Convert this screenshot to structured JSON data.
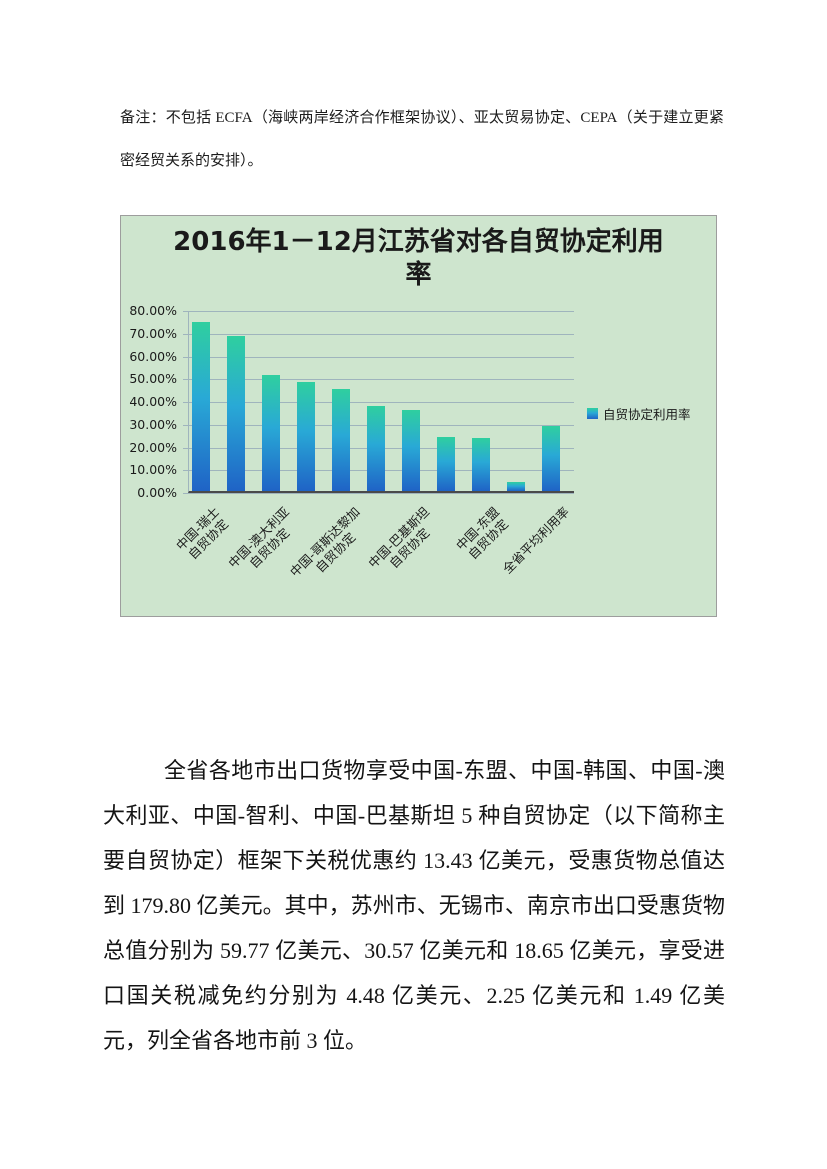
{
  "note": {
    "text": "备注：不包括 ECFA（海峡两岸经济合作框架协议）、亚太贸易协定、CEPA（关于建立更紧密经贸关系的安排）。"
  },
  "chart_data": {
    "type": "bar",
    "title": "2016年1－12月江苏省对各自贸协定利用率",
    "xlabel": "",
    "ylabel": "",
    "unit": "percent",
    "ylim": [
      0,
      80
    ],
    "ytick_step": 10,
    "grid": true,
    "legend": [
      "自贸协定利用率"
    ],
    "legend_position": "right",
    "ytick_labels": [
      "80.00%",
      "70.00%",
      "60.00%",
      "50.00%",
      "40.00%",
      "30.00%",
      "20.00%",
      "10.00%",
      "0.00%"
    ],
    "categories": [
      "中国-瑞士自贸协定",
      "",
      "中国-澳大利亚自贸协定",
      "",
      "中国-哥斯达黎加自贸协定",
      "",
      "中国-巴基斯坦自贸协定",
      "",
      "中国-东盟自贸协定",
      "",
      "全省平均利用率"
    ],
    "values": [
      74.3,
      68.3,
      51.2,
      48.0,
      45.0,
      37.3,
      35.8,
      23.9,
      23.5,
      4.0,
      28.8
    ],
    "x_labels": [
      {
        "bar": 0,
        "text": "中国-瑞士\n自贸协定"
      },
      {
        "bar": 2,
        "text": "中国-澳大利亚\n自贸协定"
      },
      {
        "bar": 4,
        "text": "中国-哥斯达黎加\n自贸协定"
      },
      {
        "bar": 6,
        "text": "中国-巴基斯坦\n自贸协定"
      },
      {
        "bar": 8,
        "text": "中国-东盟\n自贸协定"
      },
      {
        "bar": 10,
        "text": "全省平均利用率"
      }
    ],
    "colors": {
      "bar_gradient_top": "#2fcf9f",
      "bar_gradient_mid": "#29a9d6",
      "bar_gradient_bottom": "#1f63c6",
      "chart_background": "#cee5ce",
      "gridline": "#9fb4bd",
      "axis_line": "#4a4a4a",
      "text": "#1a1a1a"
    }
  },
  "body": {
    "paragraph": "全省各地市出口货物享受中国-东盟、中国-韩国、中国-澳大利亚、中国-智利、中国-巴基斯坦 5 种自贸协定（以下简称主要自贸协定）框架下关税优惠约 13.43 亿美元，受惠货物总值达到 179.80 亿美元。其中，苏州市、无锡市、南京市出口受惠货物总值分别为 59.77 亿美元、30.57 亿美元和 18.65 亿美元，享受进口国关税减免约分别为 4.48 亿美元、2.25 亿美元和 1.49 亿美元，列全省各地市前 3 位。"
  }
}
